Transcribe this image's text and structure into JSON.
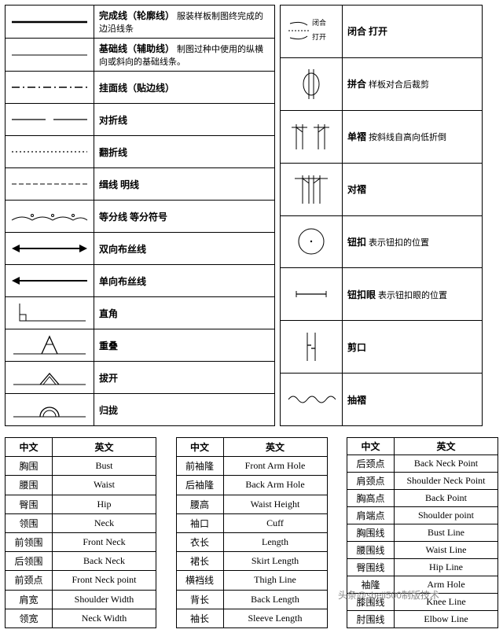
{
  "colors": {
    "border": "#000000",
    "text": "#000000",
    "bg": "#ffffff",
    "watermark": "#888888"
  },
  "legend_left": [
    {
      "key": "finish",
      "title": "完成线（轮廓线）",
      "desc": "服装样板制图终完成的边沿线条"
    },
    {
      "key": "base",
      "title": "基础线（辅助线）",
      "desc": "制图过种中使用的纵横向或斜向的基础线条。"
    },
    {
      "key": "facing",
      "title": "挂面线（贴边线）",
      "desc": ""
    },
    {
      "key": "fold",
      "title": "对折线",
      "desc": ""
    },
    {
      "key": "flip",
      "title": "翻折线",
      "desc": ""
    },
    {
      "key": "stitch",
      "title": "缉线 明线",
      "desc": ""
    },
    {
      "key": "divide",
      "title": "等分线 等分符号",
      "desc": ""
    },
    {
      "key": "grain2",
      "title": "双向布丝线",
      "desc": ""
    },
    {
      "key": "grain1",
      "title": "单向布丝线",
      "desc": ""
    },
    {
      "key": "right",
      "title": "直角",
      "desc": ""
    },
    {
      "key": "overlap",
      "title": "重叠",
      "desc": ""
    },
    {
      "key": "spread",
      "title": "拔开",
      "desc": ""
    },
    {
      "key": "gather",
      "title": "归拢",
      "desc": ""
    }
  ],
  "legend_right": [
    {
      "key": "openclose",
      "title": "闭合 打开",
      "desc": ""
    },
    {
      "key": "join",
      "title": "拼合",
      "desc": "样板对合后裁剪"
    },
    {
      "key": "pleat1",
      "title": "单褶",
      "desc": "按斜线自高向低折倒"
    },
    {
      "key": "pleat2",
      "title": "对褶",
      "desc": ""
    },
    {
      "key": "button",
      "title": "钮扣",
      "desc": "表示钮扣的位置"
    },
    {
      "key": "buttonhole",
      "title": "钮扣眼",
      "desc": "表示钮扣眼的位置"
    },
    {
      "key": "notch",
      "title": "剪口",
      "desc": ""
    },
    {
      "key": "shirr",
      "title": "抽褶",
      "desc": ""
    }
  ],
  "term_tables": [
    {
      "header": {
        "zh": "中文",
        "en": "英文"
      },
      "rows": [
        {
          "zh": "胸围",
          "en": "Bust"
        },
        {
          "zh": "腰围",
          "en": "Waist"
        },
        {
          "zh": "臀围",
          "en": "Hip"
        },
        {
          "zh": "领围",
          "en": "Neck"
        },
        {
          "zh": "前领围",
          "en": "Front Neck"
        },
        {
          "zh": "后领围",
          "en": "Back Neck"
        },
        {
          "zh": "前颈点",
          "en": "Front Neck point"
        },
        {
          "zh": "肩宽",
          "en": "Shoulder Width"
        },
        {
          "zh": "领宽",
          "en": "Neck Width"
        }
      ]
    },
    {
      "header": {
        "zh": "中文",
        "en": "英文"
      },
      "rows": [
        {
          "zh": "前袖隆",
          "en": "Front Arm Hole"
        },
        {
          "zh": "后袖隆",
          "en": "Back Arm Hole"
        },
        {
          "zh": "腰高",
          "en": "Waist Height"
        },
        {
          "zh": "袖口",
          "en": "Cuff"
        },
        {
          "zh": "衣长",
          "en": "Length"
        },
        {
          "zh": "裙长",
          "en": "Skirt Length"
        },
        {
          "zh": "横裆线",
          "en": "Thigh Line"
        },
        {
          "zh": "背长",
          "en": "Back Length"
        },
        {
          "zh": "袖长",
          "en": "Sleeve Length"
        }
      ]
    },
    {
      "header": {
        "zh": "中文",
        "en": "英文"
      },
      "rows": [
        {
          "zh": "后颈点",
          "en": "Back Neck Point"
        },
        {
          "zh": "肩颈点",
          "en": "Shoulder Neck Point"
        },
        {
          "zh": "胸高点",
          "en": "Back Point"
        },
        {
          "zh": "肩端点",
          "en": "Shoulder point"
        },
        {
          "zh": "胸围线",
          "en": "Bust Line"
        },
        {
          "zh": "腰围线",
          "en": "Waist Line"
        },
        {
          "zh": "臀围线",
          "en": "Hip Line"
        },
        {
          "zh": "袖隆",
          "en": "Arm Hole"
        },
        {
          "zh": "膝围线",
          "en": "Knee Line"
        },
        {
          "zh": "肘围线",
          "en": "Elbow Line"
        }
      ]
    }
  ],
  "watermark": "头条@sheji500制版技术"
}
